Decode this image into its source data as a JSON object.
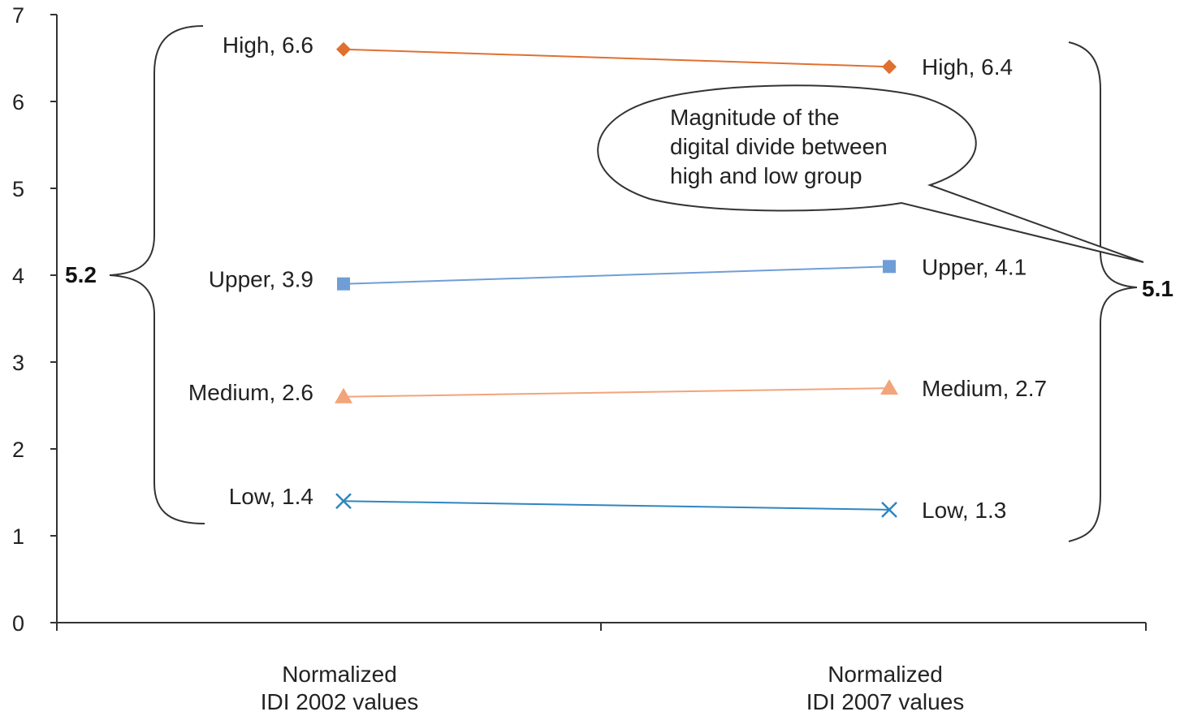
{
  "chart_data": {
    "type": "line",
    "title": "",
    "xlabel": "",
    "ylabel": "",
    "ylim": [
      0,
      7
    ],
    "yticks": [
      "0",
      "1",
      "2",
      "3",
      "4",
      "5",
      "6",
      "7"
    ],
    "categories": [
      [
        "Normalized",
        "IDI 2002 values"
      ],
      [
        "Normalized",
        "IDI 2007 values"
      ]
    ],
    "grid": false,
    "series": [
      {
        "name": "High",
        "values": [
          6.6,
          6.4
        ],
        "labels": [
          "High, 6.6",
          "High, 6.4"
        ],
        "color": "#E07030",
        "marker": "diamond"
      },
      {
        "name": "Upper",
        "values": [
          3.9,
          4.1
        ],
        "labels": [
          "Upper, 3.9",
          "Upper, 4.1"
        ],
        "color": "#6F9ED6",
        "marker": "square"
      },
      {
        "name": "Medium",
        "values": [
          2.6,
          2.7
        ],
        "labels": [
          "Medium, 2.6",
          "Medium, 2.7"
        ],
        "color": "#F2A47A",
        "marker": "triangle"
      },
      {
        "name": "Low",
        "values": [
          1.4,
          1.3
        ],
        "labels": [
          "Low, 1.4",
          "Low, 1.3"
        ],
        "color": "#2E86C1",
        "marker": "x"
      }
    ],
    "annotations": {
      "gap_2002": "5.2",
      "gap_2007": "5.1",
      "callout": [
        "Magnitude of the",
        "digital divide between",
        "high and low group"
      ]
    }
  }
}
